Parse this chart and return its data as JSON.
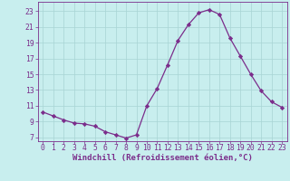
{
  "x": [
    0,
    1,
    2,
    3,
    4,
    5,
    6,
    7,
    8,
    9,
    10,
    11,
    12,
    13,
    14,
    15,
    16,
    17,
    18,
    19,
    20,
    21,
    22,
    23
  ],
  "y": [
    10.2,
    9.7,
    9.2,
    8.8,
    8.7,
    8.4,
    7.7,
    7.3,
    6.9,
    7.3,
    11.0,
    13.2,
    16.2,
    19.3,
    21.3,
    22.8,
    23.2,
    22.6,
    19.6,
    17.3,
    15.0,
    12.9,
    11.5,
    10.8
  ],
  "line_color": "#7b2d8b",
  "marker": "D",
  "marker_size": 2.2,
  "bg_color": "#c8eeee",
  "grid_color": "#a8d4d4",
  "xlabel": "Windchill (Refroidissement éolien,°C)",
  "xlim": [
    -0.5,
    23.5
  ],
  "ylim": [
    6.5,
    24.2
  ],
  "yticks": [
    7,
    9,
    11,
    13,
    15,
    17,
    19,
    21,
    23
  ],
  "xticks": [
    0,
    1,
    2,
    3,
    4,
    5,
    6,
    7,
    8,
    9,
    10,
    11,
    12,
    13,
    14,
    15,
    16,
    17,
    18,
    19,
    20,
    21,
    22,
    23
  ],
  "tick_color": "#7b2d8b",
  "label_color": "#7b2d8b",
  "xlabel_fontsize": 6.5,
  "tick_fontsize": 5.8
}
